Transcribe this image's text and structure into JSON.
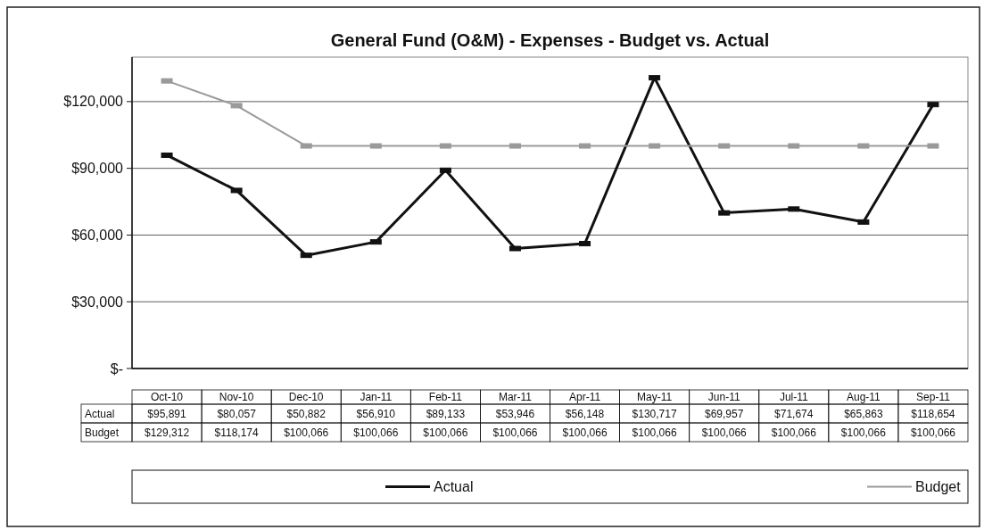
{
  "chart_data": {
    "type": "line",
    "title": "General Fund (O&M) - Expenses - Budget vs. Actual",
    "categories": [
      "Oct-10",
      "Nov-10",
      "Dec-10",
      "Jan-11",
      "Feb-11",
      "Mar-11",
      "Apr-11",
      "May-11",
      "Jun-11",
      "Jul-11",
      "Aug-11",
      "Sep-11"
    ],
    "series": [
      {
        "name": "Actual",
        "color": "#111111",
        "values": [
          95891,
          80057,
          50882,
          56910,
          89133,
          53946,
          56148,
          130717,
          69957,
          71674,
          65863,
          118654
        ],
        "value_labels": [
          "$95,891",
          "$80,057",
          "$50,882",
          "$56,910",
          "$89,133",
          "$53,946",
          "$56,148",
          "$130,717",
          "$69,957",
          "$71,674",
          "$65,863",
          "$118,654"
        ]
      },
      {
        "name": "Budget",
        "color": "#9a9a9a",
        "values": [
          129312,
          118174,
          100066,
          100066,
          100066,
          100066,
          100066,
          100066,
          100066,
          100066,
          100066,
          100066
        ],
        "value_labels": [
          "$129,312",
          "$118,174",
          "$100,066",
          "$100,066",
          "$100,066",
          "$100,066",
          "$100,066",
          "$100,066",
          "$100,066",
          "$100,066",
          "$100,066",
          "$100,066"
        ]
      }
    ],
    "ylim": [
      0,
      140000
    ],
    "yticks": [
      {
        "value": 0,
        "label": "$-"
      },
      {
        "value": 30000,
        "label": "$30,000"
      },
      {
        "value": 60000,
        "label": "$60,000"
      },
      {
        "value": 90000,
        "label": "$90,000"
      },
      {
        "value": 120000,
        "label": "$120,000"
      }
    ],
    "grid": "y",
    "legend": "bottom",
    "marker": "square",
    "line_style": "solid"
  }
}
